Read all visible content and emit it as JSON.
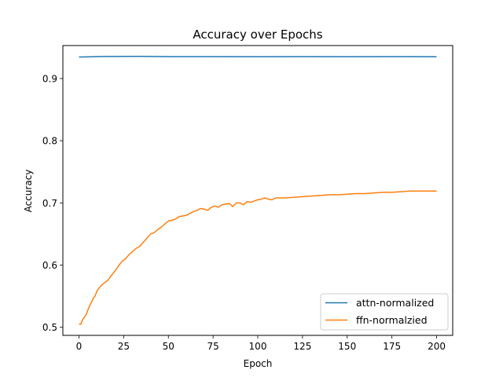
{
  "chart_data": {
    "type": "line",
    "title": "Accuracy over Epochs",
    "xlabel": "Epoch",
    "ylabel": "Accuracy",
    "xlim": [
      -9,
      209
    ],
    "ylim": [
      0.487,
      0.953
    ],
    "xticks": [
      0,
      25,
      50,
      75,
      100,
      125,
      150,
      175,
      200
    ],
    "yticks": [
      0.5,
      0.6,
      0.7,
      0.8,
      0.9
    ],
    "ytick_labels": [
      "0.5",
      "0.6",
      "0.7",
      "0.8",
      "0.9"
    ],
    "grid": false,
    "legend": "lower-right",
    "series": [
      {
        "name": "attn-normalized",
        "color": "#1f77b4",
        "x": [
          0,
          10,
          20,
          35,
          50,
          75,
          100,
          125,
          150,
          175,
          200
        ],
        "y": [
          0.9345,
          0.9352,
          0.9355,
          0.9357,
          0.9352,
          0.9351,
          0.935,
          0.9352,
          0.935,
          0.9351,
          0.935
        ]
      },
      {
        "name": "ffn-normalzied",
        "color": "#ff7f0e",
        "x": [
          0,
          1,
          2,
          3,
          4,
          5,
          6,
          7,
          8,
          9,
          10,
          12,
          14,
          16,
          18,
          20,
          22,
          24,
          26,
          28,
          30,
          32,
          34,
          36,
          38,
          40,
          42,
          44,
          46,
          48,
          50,
          52,
          54,
          56,
          58,
          60,
          62,
          64,
          66,
          68,
          70,
          72,
          74,
          76,
          78,
          80,
          82,
          84,
          86,
          88,
          90,
          92,
          94,
          96,
          98,
          100,
          102,
          104,
          106,
          108,
          110,
          115,
          120,
          125,
          130,
          135,
          140,
          145,
          150,
          155,
          160,
          165,
          170,
          175,
          180,
          185,
          190,
          195,
          200
        ],
        "y": [
          0.505,
          0.505,
          0.512,
          0.516,
          0.52,
          0.528,
          0.535,
          0.54,
          0.547,
          0.55,
          0.558,
          0.566,
          0.571,
          0.575,
          0.583,
          0.59,
          0.598,
          0.606,
          0.61,
          0.617,
          0.622,
          0.627,
          0.63,
          0.637,
          0.643,
          0.65,
          0.652,
          0.657,
          0.661,
          0.666,
          0.671,
          0.672,
          0.674,
          0.678,
          0.679,
          0.68,
          0.683,
          0.686,
          0.688,
          0.691,
          0.69,
          0.688,
          0.693,
          0.695,
          0.693,
          0.697,
          0.698,
          0.699,
          0.694,
          0.7,
          0.7,
          0.697,
          0.702,
          0.701,
          0.703,
          0.705,
          0.706,
          0.708,
          0.706,
          0.705,
          0.708,
          0.708,
          0.709,
          0.71,
          0.711,
          0.712,
          0.713,
          0.713,
          0.714,
          0.715,
          0.715,
          0.716,
          0.717,
          0.717,
          0.718,
          0.719,
          0.719,
          0.719,
          0.719
        ]
      }
    ]
  }
}
